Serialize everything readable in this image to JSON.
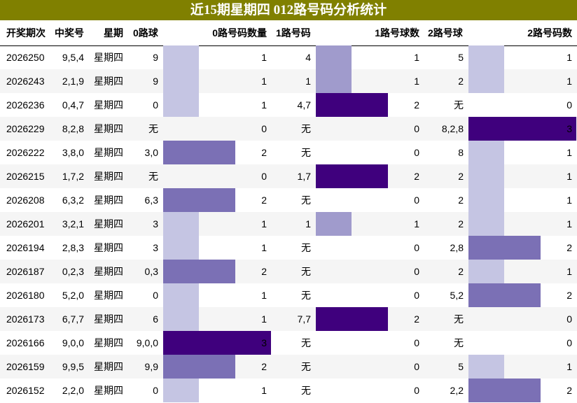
{
  "title": "近15期星期四 012路号码分析统计",
  "headers": {
    "period": "开奖期次",
    "number": "中奖号",
    "weekday": "星期",
    "r0": "0路球",
    "r0count": "0路号码数量",
    "r1": "1路号码",
    "r1count": "1路号球数",
    "r2": "2路号球",
    "r2count": "2路号码数"
  },
  "colors": {
    "title_bg": "#808000",
    "level1": "#c5c5e3",
    "level1_mid": "#a09bcc",
    "level2": "#7b70b5",
    "level3": "#3f007d"
  },
  "chart_data": {
    "type": "table",
    "title": "近15期星期四 012路号码分析统计",
    "columns": [
      "开奖期次",
      "中奖号",
      "星期",
      "0路球",
      "0路号码数量",
      "1路号码",
      "1路号球数",
      "2路号球",
      "2路号码数"
    ],
    "rows": [
      {
        "period": "2026250",
        "number": "9,5,4",
        "weekday": "星期四",
        "r0": "9",
        "c0": 1,
        "r1": "4",
        "c1": 1,
        "r2": "5",
        "c2": 1
      },
      {
        "period": "2026243",
        "number": "2,1,9",
        "weekday": "星期四",
        "r0": "9",
        "c0": 1,
        "r1": "1",
        "c1": 1,
        "r2": "2",
        "c2": 1
      },
      {
        "period": "2026236",
        "number": "0,4,7",
        "weekday": "星期四",
        "r0": "0",
        "c0": 1,
        "r1": "4,7",
        "c1": 2,
        "r2": "无",
        "c2": 0
      },
      {
        "period": "2026229",
        "number": "8,2,8",
        "weekday": "星期四",
        "r0": "无",
        "c0": 0,
        "r1": "无",
        "c1": 0,
        "r2": "8,2,8",
        "c2": 3
      },
      {
        "period": "2026222",
        "number": "3,8,0",
        "weekday": "星期四",
        "r0": "3,0",
        "c0": 2,
        "r1": "无",
        "c1": 0,
        "r2": "8",
        "c2": 1
      },
      {
        "period": "2026215",
        "number": "1,7,2",
        "weekday": "星期四",
        "r0": "无",
        "c0": 0,
        "r1": "1,7",
        "c1": 2,
        "r2": "2",
        "c2": 1
      },
      {
        "period": "2026208",
        "number": "6,3,2",
        "weekday": "星期四",
        "r0": "6,3",
        "c0": 2,
        "r1": "无",
        "c1": 0,
        "r2": "2",
        "c2": 1
      },
      {
        "period": "2026201",
        "number": "3,2,1",
        "weekday": "星期四",
        "r0": "3",
        "c0": 1,
        "r1": "1",
        "c1": 1,
        "r2": "2",
        "c2": 1
      },
      {
        "period": "2026194",
        "number": "2,8,3",
        "weekday": "星期四",
        "r0": "3",
        "c0": 1,
        "r1": "无",
        "c1": 0,
        "r2": "2,8",
        "c2": 2
      },
      {
        "period": "2026187",
        "number": "0,2,3",
        "weekday": "星期四",
        "r0": "0,3",
        "c0": 2,
        "r1": "无",
        "c1": 0,
        "r2": "2",
        "c2": 1
      },
      {
        "period": "2026180",
        "number": "5,2,0",
        "weekday": "星期四",
        "r0": "0",
        "c0": 1,
        "r1": "无",
        "c1": 0,
        "r2": "5,2",
        "c2": 2
      },
      {
        "period": "2026173",
        "number": "6,7,7",
        "weekday": "星期四",
        "r0": "6",
        "c0": 1,
        "r1": "7,7",
        "c1": 2,
        "r2": "无",
        "c2": 0
      },
      {
        "period": "2026166",
        "number": "9,0,0",
        "weekday": "星期四",
        "r0": "9,0,0",
        "c0": 3,
        "r1": "无",
        "c1": 0,
        "r2": "无",
        "c2": 0
      },
      {
        "period": "2026159",
        "number": "9,9,5",
        "weekday": "星期四",
        "r0": "9,9",
        "c0": 2,
        "r1": "无",
        "c1": 0,
        "r2": "5",
        "c2": 1
      },
      {
        "period": "2026152",
        "number": "2,2,0",
        "weekday": "星期四",
        "r0": "0",
        "c0": 1,
        "r1": "无",
        "c1": 0,
        "r2": "2,2",
        "c2": 2
      }
    ],
    "count_max": 3
  }
}
